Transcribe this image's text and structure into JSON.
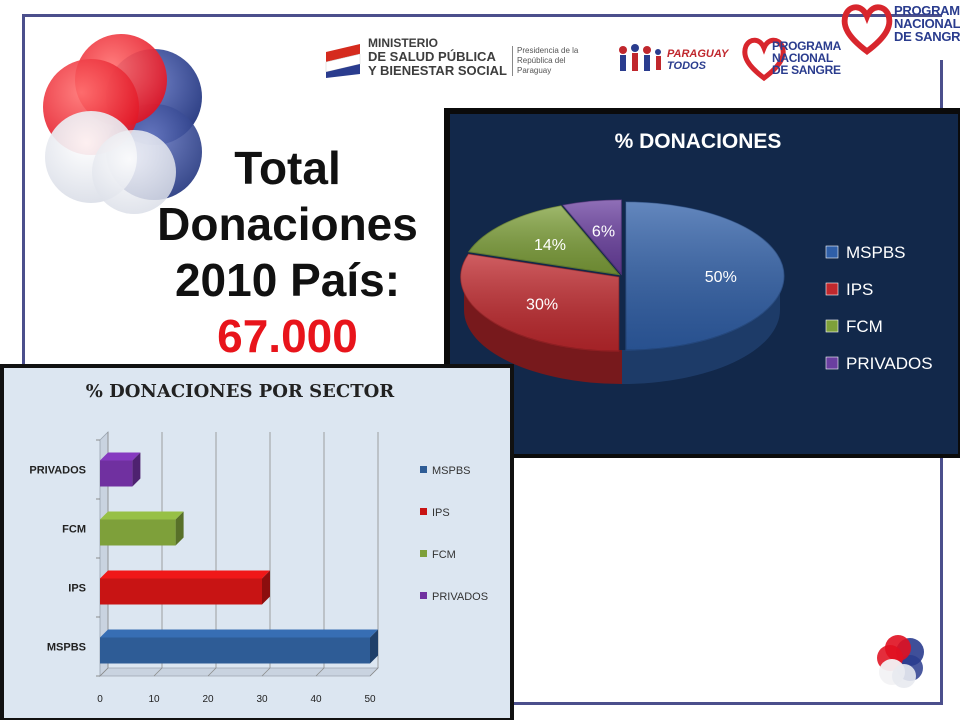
{
  "header": {
    "ministerio_line1": "MINISTERIO",
    "ministerio_line2": "DE SALUD PÚBLICA",
    "ministerio_line3": "Y BIENESTAR SOCIAL",
    "presidencia": "Presidencia de la República del Paraguay",
    "paraguay_todos_line1": "PARAGUAY",
    "paraguay_todos_line2": "TODOS",
    "pns_line1": "PROGRAMA",
    "pns_line2": "NACIONAL",
    "pns_line3": "DE SANGRE"
  },
  "headline": {
    "line1": "Total",
    "line2": "Donaciones",
    "line3": "2010 País:",
    "value": "67.000"
  },
  "chart_data": [
    {
      "type": "pie",
      "title": "% DONACIONES",
      "categories": [
        "MSPBS",
        "IPS",
        "FCM",
        "PRIVADOS"
      ],
      "values": [
        50,
        30,
        14,
        6
      ],
      "labels": [
        "50%",
        "30%",
        "14%",
        "6%"
      ],
      "colors": [
        "#2f5fa8",
        "#c0282d",
        "#7ea03a",
        "#6a3fa0"
      ],
      "legend": [
        "MSPBS",
        "IPS",
        "FCM",
        "PRIVADOS"
      ],
      "legend_position": "right"
    },
    {
      "type": "bar",
      "orientation": "horizontal",
      "title": "% DONACIONES POR SECTOR",
      "categories": [
        "MSPBS",
        "IPS",
        "FCM",
        "PRIVADOS"
      ],
      "values": [
        50,
        30,
        14,
        6
      ],
      "colors": [
        "#2e5c96",
        "#c81414",
        "#7ea03a",
        "#7030a0"
      ],
      "legend": [
        "MSPBS",
        "IPS",
        "FCM",
        "PRIVADOS"
      ],
      "legend_position": "right",
      "xlim": [
        0,
        50
      ],
      "xticks": [
        "0",
        "10",
        "20",
        "30",
        "40",
        "50"
      ],
      "grid": true
    }
  ]
}
